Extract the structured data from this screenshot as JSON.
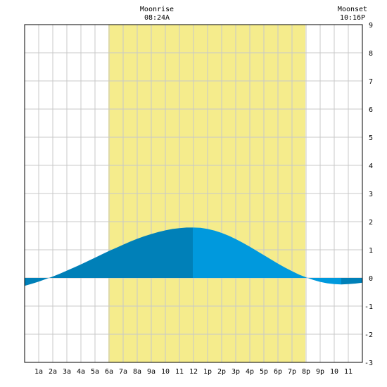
{
  "chart_data": {
    "type": "area",
    "x_unit": "hour",
    "x_tick_labels": [
      "1a",
      "2a",
      "3a",
      "4a",
      "5a",
      "6a",
      "7a",
      "8a",
      "9a",
      "10",
      "11",
      "12",
      "1p",
      "2p",
      "3p",
      "4p",
      "5p",
      "6p",
      "7p",
      "8p",
      "9p",
      "10",
      "11"
    ],
    "x_tick_hours": [
      1,
      2,
      3,
      4,
      5,
      6,
      7,
      8,
      9,
      10,
      11,
      12,
      13,
      14,
      15,
      16,
      17,
      18,
      19,
      20,
      21,
      22,
      23
    ],
    "xlim": [
      0,
      24
    ],
    "ylim": [
      -3,
      9
    ],
    "y_ticks": [
      -3,
      -2,
      -1,
      0,
      1,
      2,
      3,
      4,
      5,
      6,
      7,
      8,
      9
    ],
    "y_tick_labels": [
      "-3",
      "-2",
      "-1",
      "0",
      "1",
      "2",
      "3",
      "4",
      "5",
      "6",
      "7",
      "8",
      "9"
    ],
    "grid": true,
    "daylight": {
      "start_hour": 5.95,
      "end_hour": 19.95,
      "color": "#f5ec8c"
    },
    "fill_colors": {
      "dark": "#0080b8",
      "light": "#0099dd"
    },
    "tide": {
      "x": [
        0,
        0.5,
        1,
        1.5,
        2,
        2.5,
        3,
        3.5,
        4,
        4.5,
        5,
        5.5,
        6,
        6.5,
        7,
        7.5,
        8,
        8.5,
        9,
        9.5,
        10,
        10.5,
        11,
        11.5,
        12,
        12.5,
        13,
        13.5,
        14,
        14.5,
        15,
        15.5,
        16,
        16.5,
        17,
        17.5,
        18,
        18.5,
        19,
        19.5,
        20,
        20.5,
        21,
        21.5,
        22,
        22.5,
        23,
        23.5,
        24
      ],
      "y": [
        -0.28,
        -0.21,
        -0.13,
        -0.04,
        0.05,
        0.15,
        0.26,
        0.37,
        0.48,
        0.6,
        0.72,
        0.84,
        0.96,
        1.07,
        1.18,
        1.29,
        1.39,
        1.48,
        1.56,
        1.63,
        1.69,
        1.74,
        1.77,
        1.79,
        1.79,
        1.78,
        1.74,
        1.68,
        1.6,
        1.5,
        1.38,
        1.25,
        1.11,
        0.96,
        0.81,
        0.66,
        0.51,
        0.37,
        0.24,
        0.12,
        0.02,
        -0.07,
        -0.14,
        -0.19,
        -0.22,
        -0.23,
        -0.22,
        -0.2,
        -0.17
      ]
    },
    "color_segments": [
      {
        "from": 0,
        "to": 1.95,
        "shade": "dark"
      },
      {
        "from": 1.95,
        "to": 11.95,
        "shade": "dark"
      },
      {
        "from": 11.95,
        "to": 19.95,
        "shade": "light"
      },
      {
        "from": 19.95,
        "to": 22.5,
        "shade": "light"
      },
      {
        "from": 22.5,
        "to": 24,
        "shade": "dark"
      }
    ],
    "annotations": [
      {
        "hour": 9.4,
        "title": "Moonrise",
        "time": "08:24A"
      },
      {
        "hour": 23.3,
        "title": "Moonset",
        "time": "10:16P"
      }
    ]
  }
}
